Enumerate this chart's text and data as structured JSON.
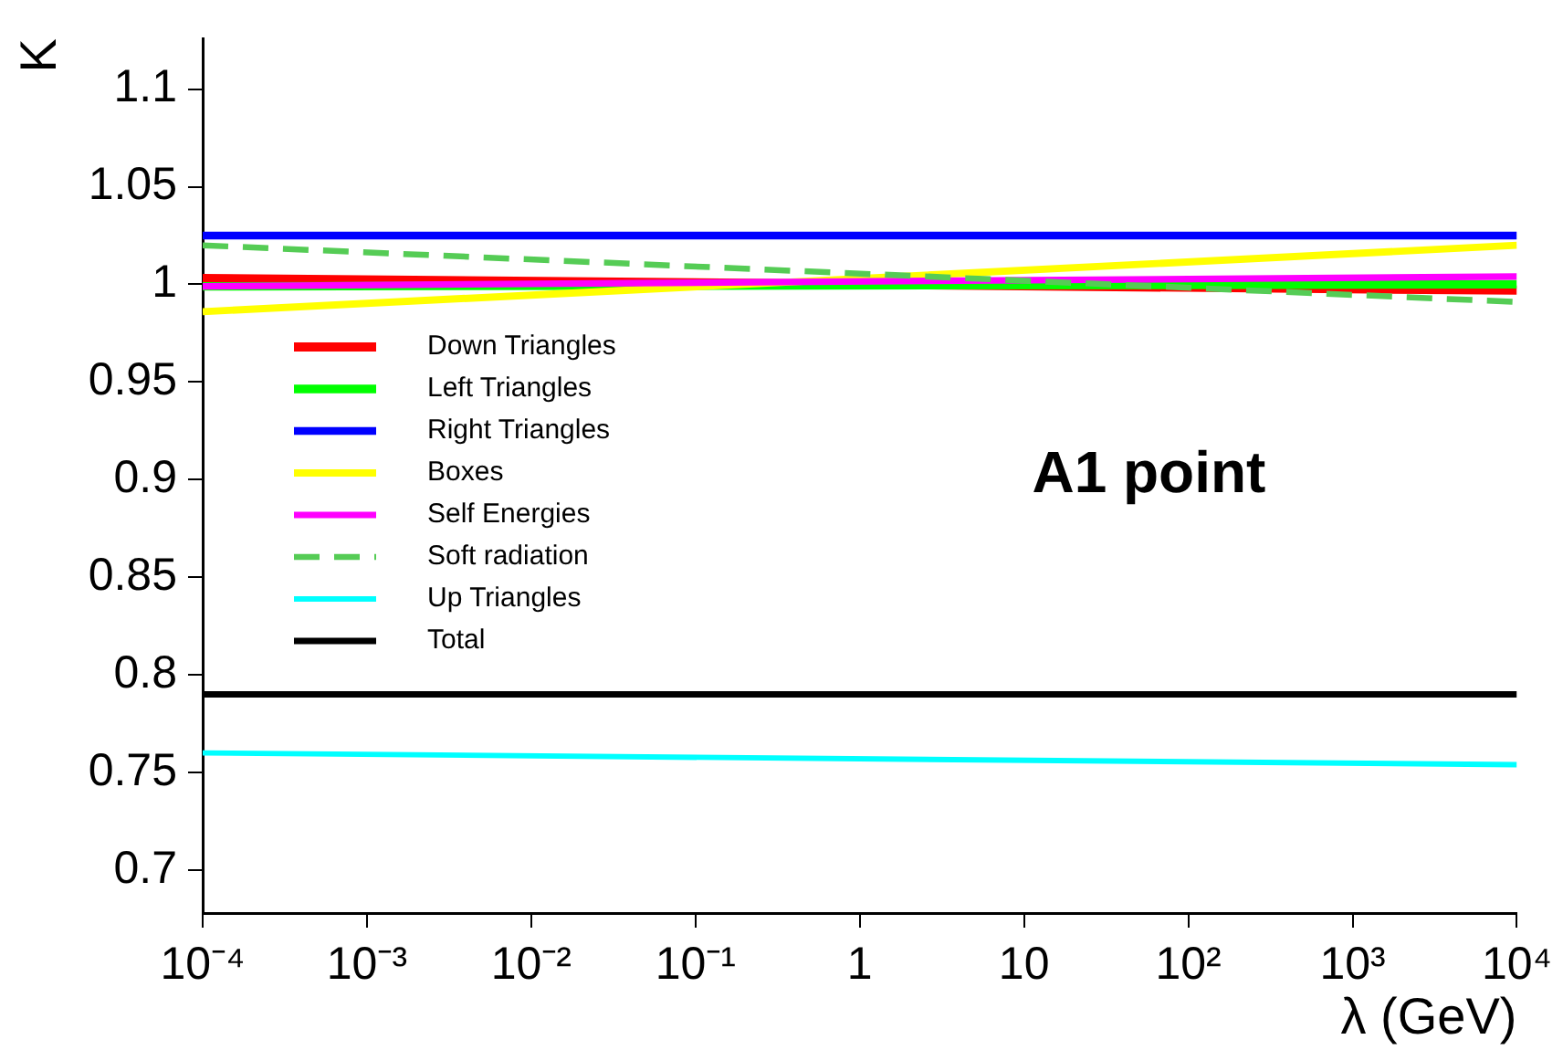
{
  "chart_data": {
    "type": "line",
    "xlabel": "λ (GeV)",
    "ylabel": "K",
    "x": [
      0.0001,
      10000
    ],
    "series": [
      {
        "name": "Down Triangles",
        "color": "#ff0000",
        "values": [
          1.003,
          0.997
        ]
      },
      {
        "name": "Left Triangles",
        "color": "#00ff00",
        "values": [
          0.999,
          1.0
        ]
      },
      {
        "name": "Right Triangles",
        "color": "#0000ff",
        "values": [
          1.025,
          1.025
        ]
      },
      {
        "name": "Boxes",
        "color": "#ffff00",
        "values": [
          0.986,
          1.02
        ]
      },
      {
        "name": "Self Energies",
        "color": "#ff00ff",
        "values": [
          0.999,
          1.004
        ]
      },
      {
        "name": "Soft radiation",
        "color": "#55cc55",
        "values": [
          1.02,
          0.991
        ],
        "line_style": "dashed"
      },
      {
        "name": "Up Triangles",
        "color": "#00ffff",
        "values": [
          0.76,
          0.754
        ]
      },
      {
        "name": "Total",
        "color": "#000000",
        "values": [
          0.79,
          0.79
        ]
      }
    ],
    "log": "x",
    "xlim": [
      0.0001,
      10000
    ],
    "xticks": [
      {
        "value": 0.0001,
        "label": "10⁻⁴"
      },
      {
        "value": 0.001,
        "label": "10⁻³"
      },
      {
        "value": 0.01,
        "label": "10⁻²"
      },
      {
        "value": 0.1,
        "label": "10⁻¹"
      },
      1,
      10,
      {
        "value": 100,
        "label": "10²"
      },
      {
        "value": 1000,
        "label": "10³"
      },
      {
        "value": 10000,
        "label": "10⁴"
      }
    ],
    "ylim": [
      0.678,
      1.126
    ],
    "yticks": [
      0.7,
      0.75,
      0.8,
      0.85,
      0.9,
      0.95,
      1,
      1.05,
      1.1
    ],
    "marker": "none",
    "line_style": "solid",
    "legend": "left",
    "annotations": [
      "A1 point"
    ]
  }
}
